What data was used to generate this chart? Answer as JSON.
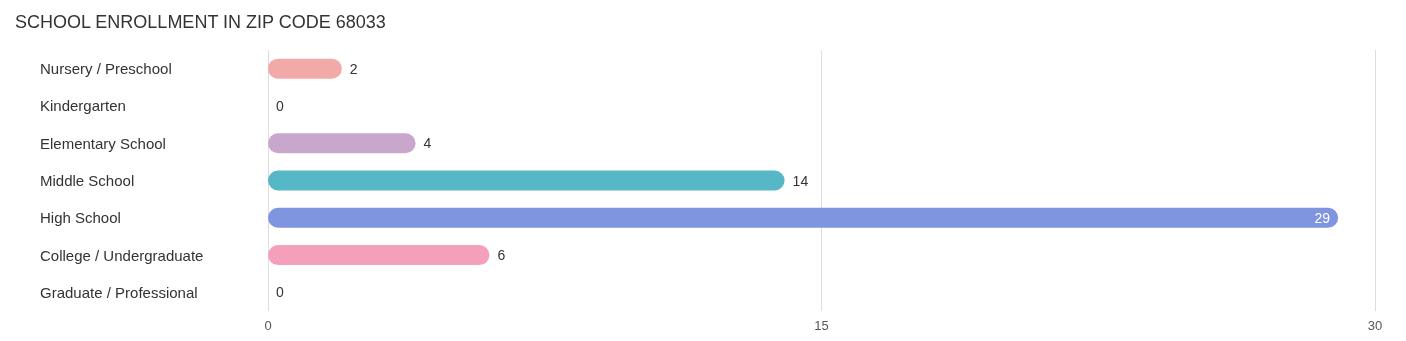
{
  "chart_data": {
    "type": "bar",
    "orientation": "horizontal",
    "title": "SCHOOL ENROLLMENT IN ZIP CODE 68033",
    "categories": [
      "Nursery / Preschool",
      "Kindergarten",
      "Elementary School",
      "Middle School",
      "High School",
      "College / Undergraduate",
      "Graduate / Professional"
    ],
    "values": [
      2,
      0,
      4,
      14,
      29,
      6,
      0
    ],
    "colors": [
      "#f2aaa8",
      "#a9c8ee",
      "#c9a6cc",
      "#56b8c6",
      "#7f95e0",
      "#f5a0bb",
      "#f8c9a0"
    ],
    "xlim": [
      0,
      30
    ],
    "xticks": [
      0,
      15,
      30
    ],
    "grid": "x",
    "data_labels": true
  }
}
